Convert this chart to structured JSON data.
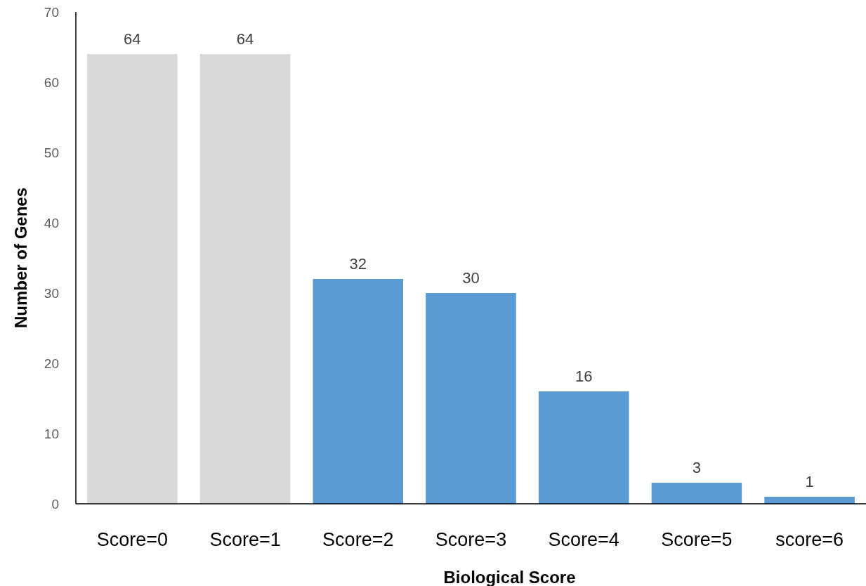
{
  "chart_data": {
    "type": "bar",
    "xlabel": "Biological Score",
    "ylabel": "Number of Genes",
    "categories": [
      "Score=0",
      "Score=1",
      "Score=2",
      "Score=3",
      "Score=4",
      "Score=5",
      "score=6"
    ],
    "values": [
      64,
      64,
      32,
      30,
      16,
      3,
      1
    ],
    "colors": [
      "#d9d9d9",
      "#d9d9d9",
      "#5b9bd5",
      "#5b9bd5",
      "#5b9bd5",
      "#5b9bd5",
      "#5b9bd5"
    ],
    "ylim": [
      0,
      70
    ],
    "yticks": [
      0,
      10,
      20,
      30,
      40,
      50,
      60,
      70
    ],
    "grid": false,
    "data_labels": true
  }
}
